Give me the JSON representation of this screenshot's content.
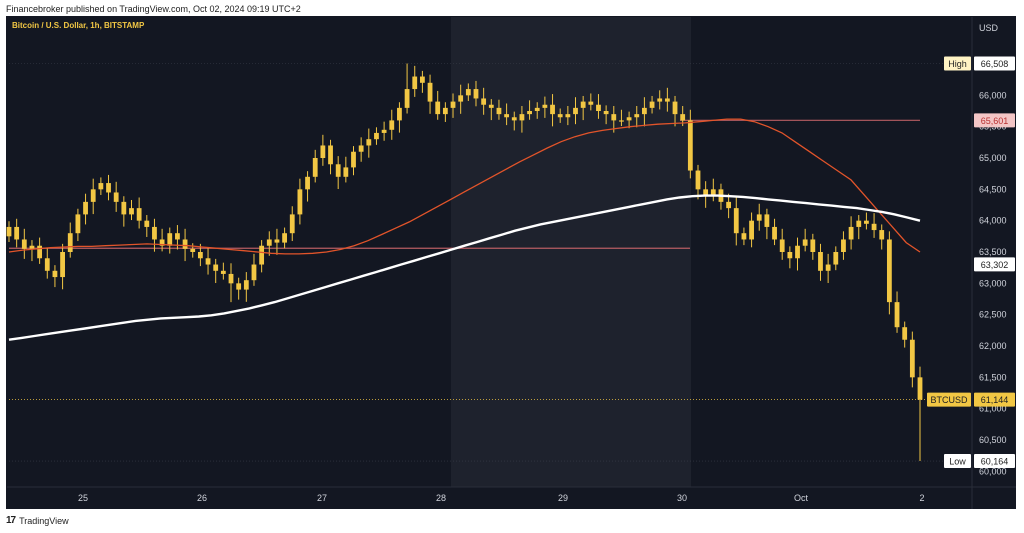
{
  "header": {
    "published": "Financebroker published on TradingView.com, Oct 02, 2024 09:19 UTC+2"
  },
  "footer": {
    "brand": "TradingView",
    "logo": "tv-logo-icon"
  },
  "chart_data": {
    "type": "candlestick",
    "title": "Bitcoin / U.S. Dollar, 1h, BITSTAMP",
    "currency": "USD",
    "ylim": [
      59750,
      67250
    ],
    "yticks": [
      60000,
      60500,
      61000,
      61500,
      62000,
      62500,
      63000,
      63500,
      64000,
      64500,
      65000,
      65500,
      66000,
      66500
    ],
    "xticks": [
      "25",
      "26",
      "27",
      "28",
      "29",
      "30",
      "Oct",
      "2"
    ],
    "labels": {
      "high": {
        "label": "High",
        "value": "66,508"
      },
      "level_upper": {
        "value": "65,601"
      },
      "level_lower": {
        "value": "63,302"
      },
      "last": {
        "label": "BTCUSD",
        "value": "61,144"
      },
      "low": {
        "label": "Low",
        "value": "60,164"
      }
    },
    "closes": [
      63900,
      63700,
      63550,
      63600,
      63400,
      63200,
      63100,
      63500,
      63800,
      64100,
      64300,
      64500,
      64600,
      64450,
      64300,
      64100,
      64200,
      64000,
      63900,
      63700,
      63600,
      63800,
      63700,
      63550,
      63500,
      63400,
      63300,
      63200,
      63150,
      63000,
      62900,
      63050,
      63300,
      63600,
      63700,
      63650,
      63800,
      64100,
      64500,
      64700,
      65000,
      65200,
      64900,
      64700,
      64850,
      65100,
      65200,
      65300,
      65400,
      65450,
      65600,
      65800,
      66100,
      66300,
      66200,
      65900,
      65700,
      65800,
      65900,
      66000,
      66100,
      65950,
      65850,
      65800,
      65700,
      65650,
      65600,
      65700,
      65750,
      65800,
      65850,
      65700,
      65650,
      65700,
      65800,
      65900,
      65850,
      65750,
      65700,
      65600,
      65600,
      65650,
      65700,
      65800,
      65900,
      65950,
      65900,
      65700,
      65600,
      64800,
      64500,
      64400,
      64500,
      64300,
      64200,
      63800,
      63700,
      64000,
      64100,
      63900,
      63700,
      63500,
      63400,
      63600,
      63700,
      63500,
      63200,
      63300,
      63500,
      63700,
      63900,
      64000,
      63950,
      63850,
      63700,
      62700,
      62300,
      62100,
      61500,
      61144
    ],
    "highs_spikes": [
      {
        "i": 52,
        "v": 66508
      }
    ],
    "lows_spikes": [
      {
        "i": 29,
        "v": 62700
      },
      {
        "i": 119,
        "v": 60164
      }
    ],
    "ma50": [
      63500,
      63530,
      63550,
      63570,
      63580,
      63590,
      63590,
      63600,
      63610,
      63620,
      63630,
      63620,
      63610,
      63600,
      63580,
      63560,
      63540,
      63520,
      63500,
      63480,
      63470,
      63470,
      63480,
      63500,
      63540,
      63600,
      63680,
      63780,
      63880,
      63980,
      64100,
      64220,
      64340,
      64460,
      64580,
      64700,
      64820,
      64940,
      65050,
      65160,
      65260,
      65340,
      65400,
      65440,
      65470,
      65500,
      65520,
      65540,
      65550,
      65560,
      65580,
      65600,
      65620,
      65620,
      65580,
      65500,
      65400,
      65250,
      65100,
      64950,
      64800,
      64650,
      64400,
      64150,
      63900,
      63650,
      63500
    ],
    "ma200": [
      62100,
      62130,
      62160,
      62190,
      62220,
      62250,
      62280,
      62310,
      62340,
      62370,
      62400,
      62420,
      62440,
      62450,
      62460,
      62470,
      62490,
      62520,
      62560,
      62600,
      62650,
      62700,
      62760,
      62820,
      62880,
      62940,
      63000,
      63060,
      63120,
      63180,
      63240,
      63300,
      63360,
      63420,
      63480,
      63540,
      63600,
      63660,
      63720,
      63780,
      63840,
      63890,
      63940,
      63980,
      64020,
      64060,
      64100,
      64140,
      64180,
      64220,
      64260,
      64300,
      64340,
      64370,
      64390,
      64400,
      64400,
      64390,
      64380,
      64360,
      64340,
      64320,
      64300,
      64280,
      64260,
      64240,
      64220,
      64200,
      64170,
      64140,
      64100,
      64050,
      64000
    ]
  },
  "colors": {
    "background": "#131722",
    "shade": "#1e222d",
    "candle": "#f2c744",
    "ma50": "#e2542a",
    "ma200": "#ffffff",
    "level_line": "#b75d63",
    "label_high_bg": "#fff3c4",
    "label_upper_bg": "#f4c6c6",
    "label_last_bg": "#f2c744"
  }
}
